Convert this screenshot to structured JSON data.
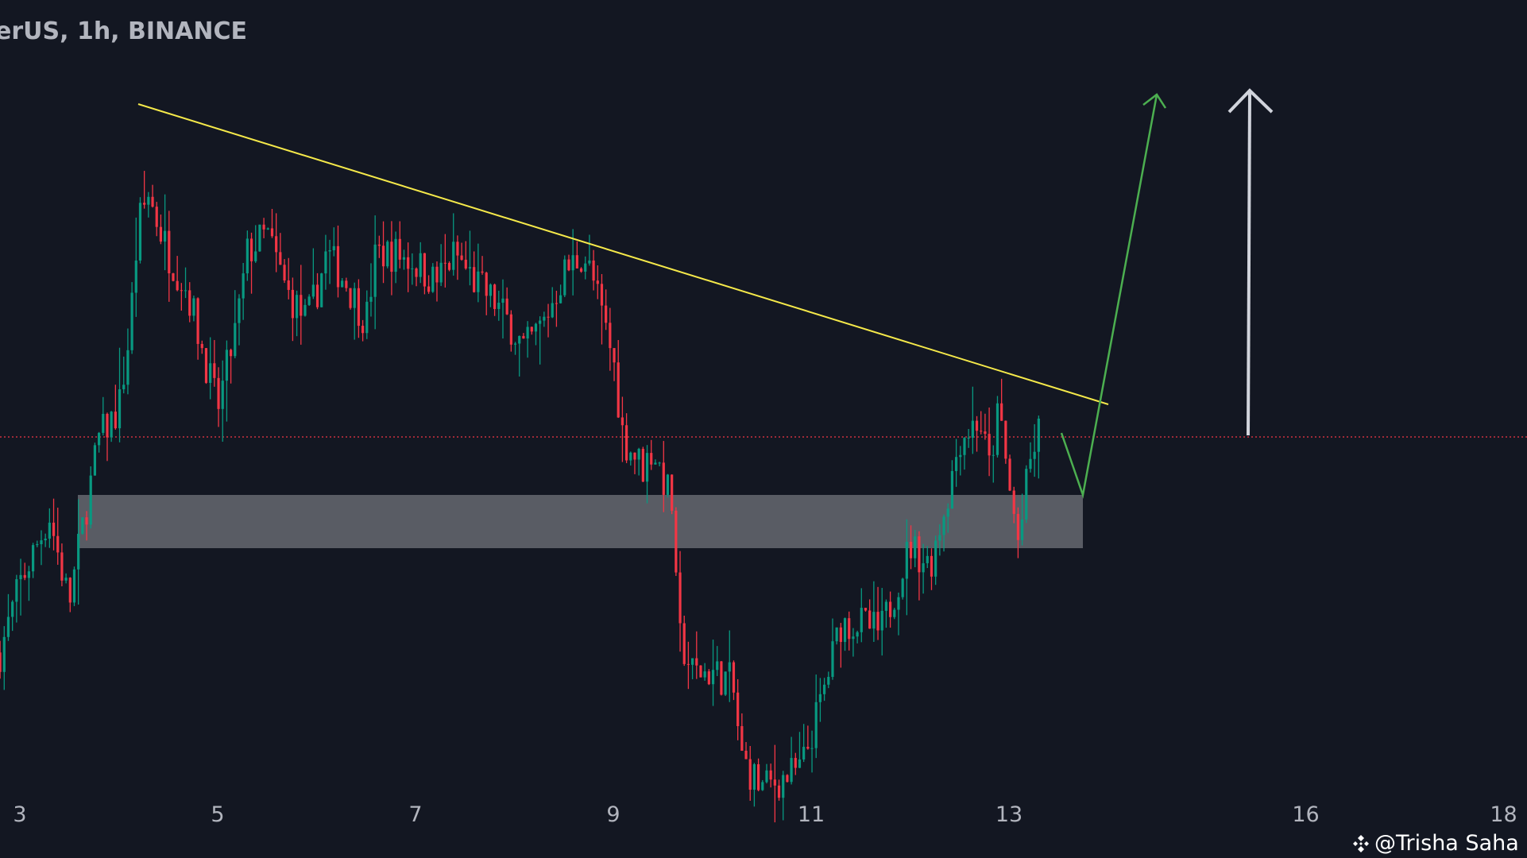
{
  "header": {
    "title": "erUS, 1h, BINANCE"
  },
  "watermark": {
    "text": "@Trisha Saha",
    "icon": "binance-logo-icon"
  },
  "colors": {
    "background": "#131722",
    "up": "#089981",
    "down": "#f23645",
    "trendline": "#f5e94a",
    "projection": "#4caf50",
    "target_arrow": "#d1d4dc",
    "zone": "#5d6068",
    "price_line": "#f23645"
  },
  "chart_data": {
    "type": "candlestick",
    "title": "",
    "timeframe": "1h",
    "x_ticks": [
      "3",
      "5",
      "7",
      "9",
      "11",
      "13",
      "16",
      "18"
    ],
    "x_tick_days": [
      3,
      5,
      7,
      9,
      11,
      13,
      16,
      18
    ],
    "price_scale": "relative (no price axis shown)",
    "ylim": [
      0,
      881
    ],
    "close_path": [
      [
        2.8,
        211
      ],
      [
        3.0,
        281
      ],
      [
        3.3,
        351
      ],
      [
        3.5,
        261
      ],
      [
        3.6,
        321
      ],
      [
        3.8,
        431
      ],
      [
        4.0,
        461
      ],
      [
        4.1,
        531
      ],
      [
        4.2,
        651
      ],
      [
        4.3,
        681
      ],
      [
        4.5,
        621
      ],
      [
        4.7,
        581
      ],
      [
        4.9,
        501
      ],
      [
        5.0,
        461
      ],
      [
        5.2,
        551
      ],
      [
        5.3,
        621
      ],
      [
        5.5,
        641
      ],
      [
        5.7,
        581
      ],
      [
        5.9,
        551
      ],
      [
        6.0,
        581
      ],
      [
        6.1,
        621
      ],
      [
        6.3,
        591
      ],
      [
        6.5,
        551
      ],
      [
        6.6,
        621
      ],
      [
        6.8,
        621
      ],
      [
        7.0,
        611
      ],
      [
        7.2,
        591
      ],
      [
        7.4,
        621
      ],
      [
        7.6,
        591
      ],
      [
        7.8,
        571
      ],
      [
        8.0,
        541
      ],
      [
        8.1,
        521
      ],
      [
        8.3,
        551
      ],
      [
        8.5,
        601
      ],
      [
        8.7,
        621
      ],
      [
        8.8,
        591
      ],
      [
        9.0,
        511
      ],
      [
        9.1,
        431
      ],
      [
        9.3,
        401
      ],
      [
        9.4,
        421
      ],
      [
        9.6,
        361
      ],
      [
        9.65,
        231
      ],
      [
        9.8,
        191
      ],
      [
        10.0,
        191
      ],
      [
        10.2,
        181
      ],
      [
        10.3,
        101
      ],
      [
        10.5,
        71
      ],
      [
        10.7,
        81
      ],
      [
        10.9,
        91
      ],
      [
        11.1,
        161
      ],
      [
        11.3,
        241
      ],
      [
        11.5,
        241
      ],
      [
        11.7,
        231
      ],
      [
        11.9,
        291
      ],
      [
        12.0,
        321
      ],
      [
        12.2,
        301
      ],
      [
        12.4,
        381
      ],
      [
        12.5,
        431
      ],
      [
        12.7,
        451
      ],
      [
        12.8,
        401
      ],
      [
        12.9,
        461
      ],
      [
        13.0,
        381
      ],
      [
        13.1,
        321
      ],
      [
        13.2,
        401
      ],
      [
        13.3,
        436
      ]
    ],
    "annotations": {
      "descending_trendline": true,
      "support_zone": true,
      "current_price_line": true,
      "projected_path": "pullback to zone then breakout up",
      "target_arrow": "up"
    }
  }
}
